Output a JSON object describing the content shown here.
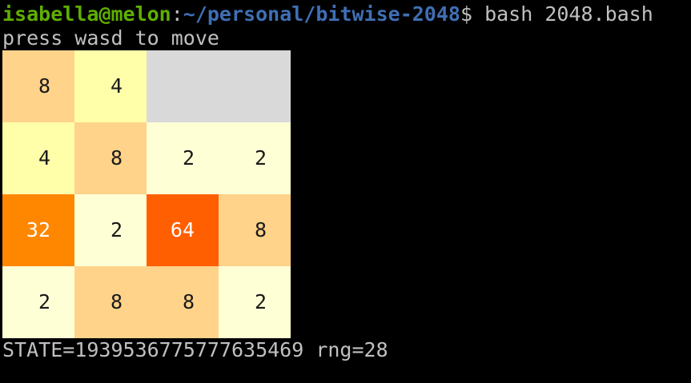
{
  "prompt": {
    "user": "isabella@melon",
    "separator": ":",
    "path": "~/personal/bitwise-2048",
    "command": "$ bash 2048.bash"
  },
  "instructions": "press wasd to move",
  "board": {
    "rows": [
      [
        {
          "value": 8,
          "color": "#ffd38a",
          "text_color": "#1a1a1a"
        },
        {
          "value": 4,
          "color": "#ffffaa",
          "text_color": "#1a1a1a"
        },
        {
          "color": "#d9d9d9"
        },
        {
          "color": "#d9d9d9"
        }
      ],
      [
        {
          "value": 4,
          "color": "#ffffaa",
          "text_color": "#1a1a1a"
        },
        {
          "value": 8,
          "color": "#ffd38a",
          "text_color": "#1a1a1a"
        },
        {
          "value": 2,
          "color": "#ffffd6",
          "text_color": "#1a1a1a"
        },
        {
          "value": 2,
          "color": "#ffffd6",
          "text_color": "#1a1a1a"
        }
      ],
      [
        {
          "value": 32,
          "color": "#ff8700",
          "text_color": "#ffffff"
        },
        {
          "value": 2,
          "color": "#ffffd6",
          "text_color": "#1a1a1a"
        },
        {
          "value": 64,
          "color": "#ff5f00",
          "text_color": "#ffffff"
        },
        {
          "value": 8,
          "color": "#ffd38a",
          "text_color": "#1a1a1a"
        }
      ],
      [
        {
          "value": 2,
          "color": "#ffffd6",
          "text_color": "#1a1a1a"
        },
        {
          "value": 8,
          "color": "#ffd38a",
          "text_color": "#1a1a1a"
        },
        {
          "value": 8,
          "color": "#ffd38a",
          "text_color": "#1a1a1a"
        },
        {
          "value": 2,
          "color": "#ffffd6",
          "text_color": "#1a1a1a"
        }
      ]
    ]
  },
  "status": "STATE=1939536775777635469 rng=28"
}
